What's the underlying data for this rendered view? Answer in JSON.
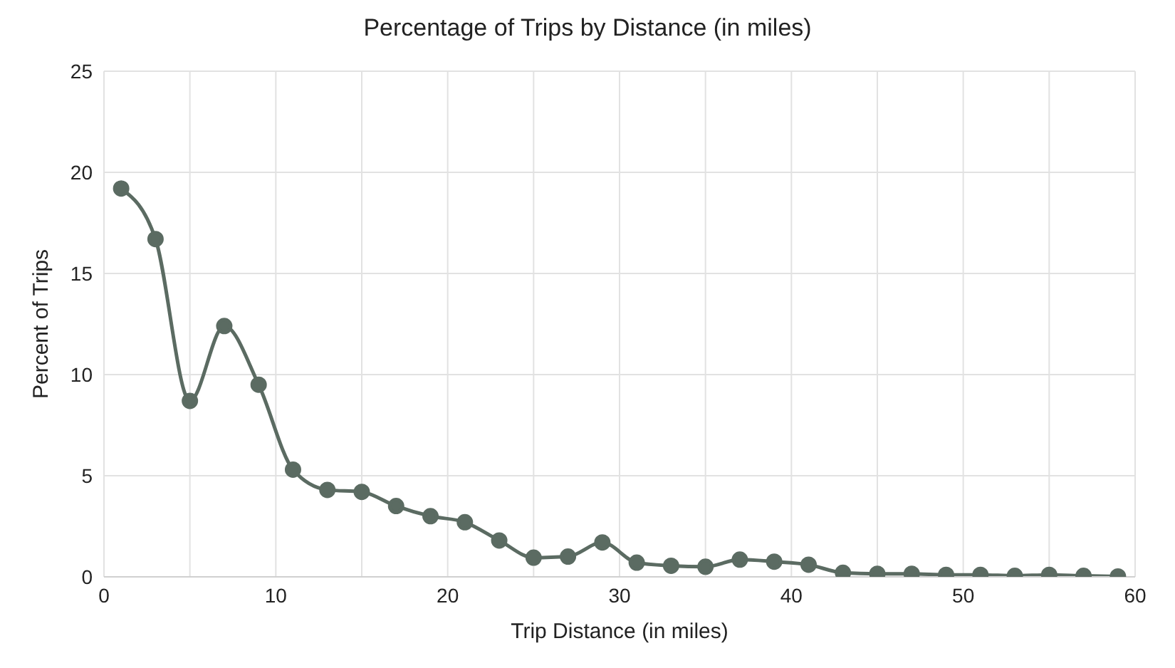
{
  "chart_data": {
    "type": "line",
    "title": "Percentage of Trips by Distance (in miles)",
    "xlabel": "Trip Distance (in miles)",
    "ylabel": "Percent of Trips",
    "x": [
      1,
      3,
      5,
      7,
      9,
      11,
      13,
      15,
      17,
      19,
      21,
      23,
      25,
      27,
      29,
      31,
      33,
      35,
      37,
      39,
      41,
      43,
      45,
      47,
      49,
      51,
      53,
      55,
      57,
      59
    ],
    "series": [
      {
        "color": "#5b6b62",
        "values": [
          19.2,
          16.7,
          8.7,
          12.4,
          9.5,
          5.3,
          4.3,
          4.2,
          3.5,
          3.0,
          2.7,
          1.8,
          0.95,
          1.0,
          1.7,
          0.7,
          0.55,
          0.5,
          0.85,
          0.75,
          0.6,
          0.2,
          0.15,
          0.15,
          0.1,
          0.1,
          0.05,
          0.1,
          0.05,
          0.02
        ]
      }
    ],
    "xlim": [
      0,
      60
    ],
    "xticks": [
      0,
      {
        "value": 5,
        "label": null
      },
      10,
      {
        "value": 15,
        "label": null
      },
      20,
      {
        "value": 25,
        "label": null
      },
      30,
      {
        "value": 35,
        "label": null
      },
      40,
      {
        "value": 45,
        "label": null
      },
      50,
      {
        "value": 55,
        "label": null
      },
      60
    ],
    "ylim": [
      0,
      25
    ],
    "yticks": [
      0,
      5,
      10,
      15,
      20,
      25
    ],
    "grid": true,
    "marker": "circle",
    "line_style": "solid",
    "legend": false
  }
}
